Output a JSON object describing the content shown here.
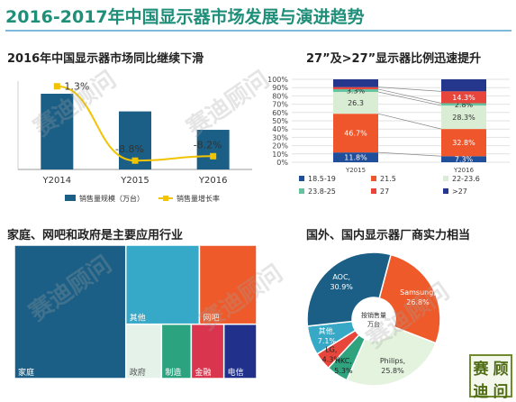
{
  "page_title": "2016-2017年中国显示器市场发展与演进趋势",
  "watermark": "赛迪顾问",
  "logo_chars": [
    "赛",
    "顾",
    "迪",
    "问"
  ],
  "colors": {
    "title": "#1f8f7a",
    "bar": "#1b5f86",
    "line": "#f2c300"
  },
  "chart_data": [
    {
      "type": "bar",
      "title": "2016年中国显示器市场同比继续下滑",
      "categories": [
        "Y2014",
        "Y2015",
        "Y2016"
      ],
      "series": [
        {
          "name": "销售量规模（万台）",
          "kind": "bar",
          "color": "#1b5f86",
          "values": [
            3000,
            2300,
            1570
          ]
        },
        {
          "name": "销售量增长率",
          "kind": "line",
          "color": "#f2c300",
          "values": [
            1.3,
            -8.8,
            -8.2
          ],
          "labels": [
            "1.3%",
            "-8.8%",
            "-8.2%"
          ]
        }
      ],
      "ylim": [
        0,
        3500
      ],
      "ylim_right": [
        -10,
        2
      ],
      "grid": false,
      "legend": "bottom"
    },
    {
      "type": "bar",
      "stacked": "percent",
      "title": "27”及>27”显示器比例迅速提升",
      "categories": [
        "Y2015",
        "Y2016"
      ],
      "series": [
        {
          "name": "18.5-19",
          "color": "#1f4e9a",
          "values": [
            11.8,
            7.3
          ],
          "labels": [
            "11.8%",
            "7.3%"
          ]
        },
        {
          "name": "21.5",
          "color": "#f0562b",
          "values": [
            46.7,
            32.8
          ],
          "labels": [
            "46.7%",
            "32.8%"
          ]
        },
        {
          "name": "22-23.6",
          "color": "#d9ecd4",
          "values": [
            26.3,
            28.3
          ],
          "labels": [
            "26.3",
            "28.3%"
          ]
        },
        {
          "name": "23.8-25",
          "color": "#67c29f",
          "values": [
            3.3,
            2.8
          ],
          "labels": [
            "3.3%",
            "2.8%"
          ]
        },
        {
          "name": "27",
          "color": "#e8463b",
          "values": [
            2.5,
            14.3
          ],
          "labels": [
            "",
            "14.3%"
          ]
        },
        {
          "name": ">27",
          "color": "#24378c",
          "values": [
            9.4,
            14.5
          ],
          "labels": [
            "",
            ""
          ]
        }
      ],
      "yticks": [
        "0%",
        "10%",
        "20%",
        "30%",
        "40%",
        "50%",
        "60%",
        "70%",
        "80%",
        "90%",
        "100%"
      ],
      "ylim": [
        0,
        100
      ],
      "grid": true,
      "legend": "bottom"
    },
    {
      "type": "treemap",
      "title": "家庭、网吧和政府是主要应用行业",
      "items": [
        {
          "label": "家庭",
          "value": 46,
          "color": "#1b5f86"
        },
        {
          "label": "其他",
          "value": 18,
          "color": "#36a9c8"
        },
        {
          "label": "网吧",
          "value": 14,
          "color": "#ef5a2a"
        },
        {
          "label": "政府",
          "value": 6,
          "color": "#e5f2ea"
        },
        {
          "label": "制造",
          "value": 5,
          "color": "#2ca37f"
        },
        {
          "label": "金融",
          "value": 5.5,
          "color": "#d9354e"
        },
        {
          "label": "电信",
          "value": 5.5,
          "color": "#21308a"
        }
      ]
    },
    {
      "type": "pie",
      "donut": true,
      "title": "国外、国内显示器厂商实力相当",
      "center_label": [
        "按销售量",
        "万台"
      ],
      "slices": [
        {
          "label": "Samsung,",
          "pct": "26.8%",
          "value": 26.8,
          "color": "#ef5a2a"
        },
        {
          "label": "Philips,",
          "pct": "25.8%",
          "value": 25.8,
          "color": "#e3f3de"
        },
        {
          "label": "HKC,",
          "pct": "5.3%",
          "value": 5.3,
          "color": "#2ea37e"
        },
        {
          "label": "LG,",
          "pct": "4.3%",
          "value": 4.3,
          "color": "#e8463b"
        },
        {
          "label": "其他,",
          "pct": "7.1%",
          "value": 7.1,
          "color": "#37a9c7"
        },
        {
          "label": "AOC,",
          "pct": "30.9%",
          "value": 30.9,
          "color": "#1b5f86"
        }
      ]
    }
  ]
}
